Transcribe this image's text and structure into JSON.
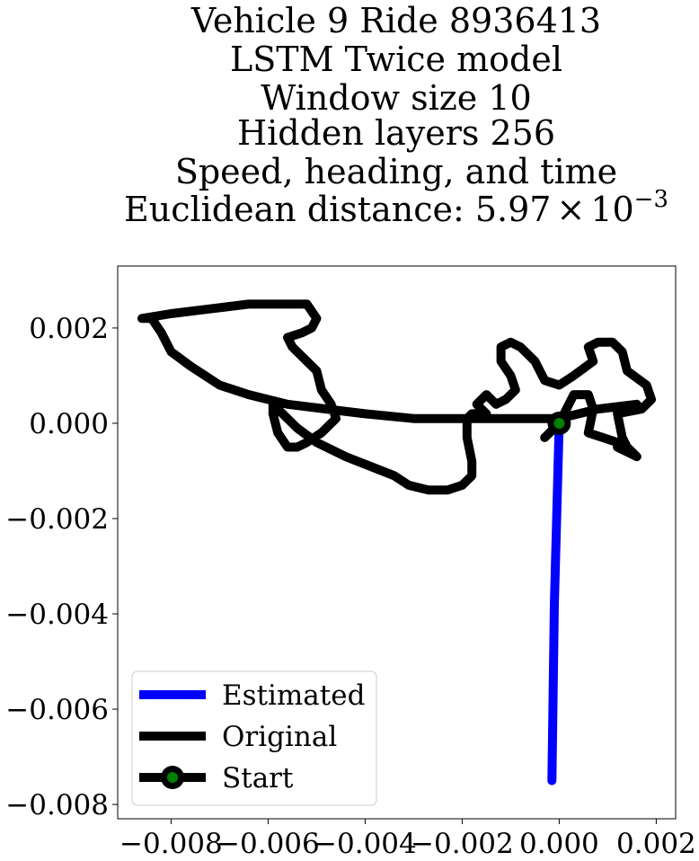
{
  "chart_data": {
    "type": "line",
    "title_lines": [
      "Vehicle 9 Ride 8936413",
      "LSTM Twice model",
      "Window size 10",
      "Hidden layers 256",
      "Speed, heading, and time"
    ],
    "title_distance_prefix": "Euclidean distance: 5.97",
    "title_distance_times": "×",
    "title_distance_base": "10",
    "title_distance_exp": "−3",
    "xlabel": "",
    "ylabel": "",
    "xlim": [
      -0.0091,
      0.0024
    ],
    "ylim": [
      -0.0083,
      0.0033
    ],
    "x_ticks": [
      -0.008,
      -0.006,
      -0.004,
      -0.002,
      0.0,
      0.002
    ],
    "x_tick_labels": [
      "−0.008",
      "−0.006",
      "−0.004",
      "−0.002",
      "0.000",
      "0.002"
    ],
    "y_ticks": [
      0.002,
      0.0,
      -0.002,
      -0.004,
      -0.006,
      -0.008
    ],
    "y_tick_labels": [
      "0.002",
      "0.000",
      "−0.002",
      "−0.004",
      "−0.006",
      "−0.008"
    ],
    "grid": false,
    "legend_position": "lower-left",
    "series": [
      {
        "name": "Estimated",
        "color": "#0000ff",
        "points": [
          [
            0.0,
            0.0
          ],
          [
            -0.0001,
            -0.0038
          ],
          [
            -0.00015,
            -0.0075
          ]
        ]
      },
      {
        "name": "Original",
        "color": "#000000",
        "points": [
          [
            0.0,
            0.0
          ],
          [
            -0.0003,
            -0.0003
          ],
          [
            0.0,
            0.0
          ],
          [
            0.0003,
            0.0006
          ],
          [
            0.0006,
            0.0006
          ],
          [
            0.0007,
            0.0003
          ],
          [
            0.0006,
            -0.0002
          ],
          [
            0.0009,
            -0.0003
          ],
          [
            0.0012,
            -0.0004
          ],
          [
            0.0012,
            -0.0005
          ],
          [
            0.0016,
            -0.0007
          ],
          [
            0.0014,
            -0.0005
          ],
          [
            0.0013,
            -0.0003
          ],
          [
            0.0012,
            0.0002
          ],
          [
            0.0017,
            0.0003
          ],
          [
            0.0019,
            0.0005
          ],
          [
            0.0018,
            0.0008
          ],
          [
            0.0014,
            0.0011
          ],
          [
            0.0013,
            0.0015
          ],
          [
            0.0011,
            0.0017
          ],
          [
            0.0008,
            0.0017
          ],
          [
            0.0006,
            0.0016
          ],
          [
            0.0007,
            0.0013
          ],
          [
            0.0003,
            0.001
          ],
          [
            0.0,
            0.0008
          ],
          [
            -0.0003,
            0.0009
          ],
          [
            -0.0005,
            0.0013
          ],
          [
            -0.0008,
            0.0016
          ],
          [
            -0.001,
            0.0017
          ],
          [
            -0.0012,
            0.0016
          ],
          [
            -0.0012,
            0.0013
          ],
          [
            -0.001,
            0.001
          ],
          [
            -0.0009,
            0.0007
          ],
          [
            -0.0011,
            0.0005
          ],
          [
            -0.0013,
            0.0004
          ],
          [
            -0.0015,
            0.0006
          ],
          [
            -0.0017,
            0.0004
          ],
          [
            -0.0015,
            0.0002
          ],
          [
            -0.0018,
            0.0002
          ],
          [
            -0.0019,
            0.0001
          ],
          [
            -0.0019,
            -0.0003
          ],
          [
            -0.0018,
            -0.0008
          ],
          [
            -0.0018,
            -0.0011
          ],
          [
            -0.002,
            -0.0013
          ],
          [
            -0.0023,
            -0.0014
          ],
          [
            -0.0027,
            -0.0014
          ],
          [
            -0.0031,
            -0.0013
          ],
          [
            -0.0034,
            -0.0011
          ],
          [
            -0.0039,
            -0.0009
          ],
          [
            -0.0044,
            -0.0007
          ],
          [
            -0.005,
            -0.0004
          ],
          [
            -0.0054,
            -0.0001
          ],
          [
            -0.0057,
            0.0002
          ],
          [
            -0.0059,
            0.0004
          ],
          [
            -0.0059,
            0.0002
          ],
          [
            -0.0058,
            -0.0002
          ],
          [
            -0.0056,
            -0.0005
          ],
          [
            -0.0054,
            -0.0005
          ],
          [
            -0.0052,
            -0.0004
          ],
          [
            -0.0049,
            -0.0002
          ],
          [
            -0.0046,
            0.0001
          ],
          [
            -0.0047,
            0.0004
          ],
          [
            -0.0049,
            0.0007
          ],
          [
            -0.005,
            0.0011
          ],
          [
            -0.0052,
            0.0013
          ],
          [
            -0.0055,
            0.0016
          ],
          [
            -0.0056,
            0.0018
          ],
          [
            -0.0053,
            0.0019
          ],
          [
            -0.0051,
            0.002
          ],
          [
            -0.005,
            0.0022
          ],
          [
            -0.0052,
            0.0025
          ],
          [
            -0.0056,
            0.0025
          ],
          [
            -0.0064,
            0.0025
          ],
          [
            -0.0072,
            0.0024
          ],
          [
            -0.008,
            0.0023
          ],
          [
            -0.0086,
            0.0022
          ],
          [
            -0.0084,
            0.0022
          ],
          [
            -0.0082,
            0.0019
          ],
          [
            -0.008,
            0.0015
          ],
          [
            -0.0076,
            0.0012
          ],
          [
            -0.007,
            0.0008
          ],
          [
            -0.0064,
            0.0006
          ],
          [
            -0.0056,
            0.0004
          ],
          [
            -0.0048,
            0.0003
          ],
          [
            -0.004,
            0.0002
          ],
          [
            -0.003,
            0.0001
          ],
          [
            -0.002,
            0.0001
          ],
          [
            -0.001,
            0.0001
          ],
          [
            0.0,
            0.0001
          ],
          [
            0.0008,
            0.0003
          ],
          [
            0.0016,
            0.0004
          ]
        ]
      }
    ],
    "start_point": {
      "name": "Start",
      "x": 0.0,
      "y": 0.0,
      "marker_color": "#008000",
      "edge_color": "#000000"
    }
  }
}
